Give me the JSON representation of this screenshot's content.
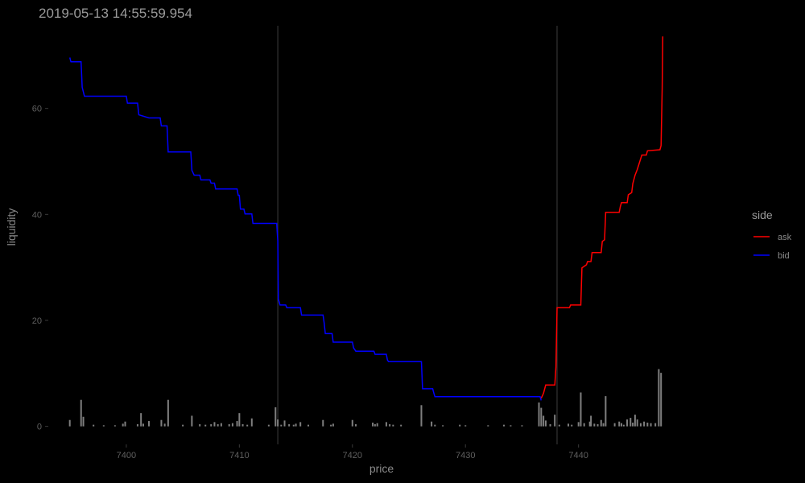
{
  "chart_data": {
    "type": "line",
    "title": "2019-05-13 14:55:59.954",
    "xlabel": "price",
    "ylabel": "liquidity",
    "xlim": [
      7393.1,
      7452.2
    ],
    "ylim": [
      -3.4,
      75.6
    ],
    "x_ticks": [
      7400,
      7410,
      7420,
      7430,
      7440
    ],
    "y_ticks": [
      0,
      20,
      40,
      60
    ],
    "grid": false,
    "legend": {
      "title": "side",
      "position": "right",
      "entries": [
        {
          "label": "ask",
          "color": "#ff0000"
        },
        {
          "label": "bid",
          "color": "#0000ff"
        }
      ]
    },
    "vlines": [
      {
        "x": 7413.4,
        "color": "#333333"
      },
      {
        "x": 7438.1,
        "color": "#333333"
      }
    ],
    "series": [
      {
        "name": "bid",
        "color": "#0000ff",
        "points": [
          [
            7395.0,
            69.6
          ],
          [
            7395.1,
            68.8
          ],
          [
            7396.0,
            68.8
          ],
          [
            7396.1,
            64.0
          ],
          [
            7396.3,
            62.3
          ],
          [
            7400.0,
            62.3
          ],
          [
            7400.1,
            61.0
          ],
          [
            7401.0,
            61.0
          ],
          [
            7401.1,
            58.8
          ],
          [
            7402.0,
            58.2
          ],
          [
            7403.0,
            58.2
          ],
          [
            7403.1,
            56.7
          ],
          [
            7403.6,
            56.7
          ],
          [
            7403.7,
            51.8
          ],
          [
            7405.7,
            51.8
          ],
          [
            7405.8,
            48.3
          ],
          [
            7406.0,
            47.4
          ],
          [
            7406.5,
            47.4
          ],
          [
            7406.6,
            46.5
          ],
          [
            7407.4,
            46.5
          ],
          [
            7407.5,
            45.9
          ],
          [
            7407.8,
            45.9
          ],
          [
            7407.9,
            44.8
          ],
          [
            7409.8,
            44.8
          ],
          [
            7409.9,
            43.6
          ],
          [
            7410.0,
            43.6
          ],
          [
            7410.1,
            41.0
          ],
          [
            7410.4,
            41.0
          ],
          [
            7410.5,
            40.1
          ],
          [
            7411.1,
            40.1
          ],
          [
            7411.2,
            38.3
          ],
          [
            7413.3,
            38.3
          ],
          [
            7413.4,
            35.0
          ],
          [
            7413.45,
            24.0
          ],
          [
            7413.6,
            22.9
          ],
          [
            7414.1,
            22.9
          ],
          [
            7414.2,
            22.4
          ],
          [
            7415.4,
            22.4
          ],
          [
            7415.5,
            21.0
          ],
          [
            7417.4,
            21.0
          ],
          [
            7417.5,
            19.5
          ],
          [
            7417.6,
            17.5
          ],
          [
            7418.2,
            17.5
          ],
          [
            7418.3,
            15.9
          ],
          [
            7420.0,
            15.9
          ],
          [
            7420.1,
            14.8
          ],
          [
            7420.3,
            14.2
          ],
          [
            7421.9,
            14.2
          ],
          [
            7422.0,
            13.6
          ],
          [
            7423.0,
            13.6
          ],
          [
            7423.1,
            12.5
          ],
          [
            7423.2,
            12.2
          ],
          [
            7426.1,
            12.2
          ],
          [
            7426.2,
            7.1
          ],
          [
            7427.1,
            7.1
          ],
          [
            7427.2,
            6.3
          ],
          [
            7427.3,
            5.6
          ],
          [
            7436.6,
            5.6
          ],
          [
            7436.7,
            4.9
          ]
        ]
      },
      {
        "name": "ask",
        "color": "#ff0000",
        "points": [
          [
            7436.7,
            5.3
          ],
          [
            7436.9,
            6.2
          ],
          [
            7437.0,
            7.0
          ],
          [
            7437.1,
            7.8
          ],
          [
            7437.9,
            7.8
          ],
          [
            7438.0,
            11.2
          ],
          [
            7438.1,
            22.4
          ],
          [
            7439.2,
            22.4
          ],
          [
            7439.3,
            22.9
          ],
          [
            7440.2,
            22.9
          ],
          [
            7440.3,
            29.9
          ],
          [
            7440.7,
            30.5
          ],
          [
            7440.8,
            31.1
          ],
          [
            7441.1,
            31.1
          ],
          [
            7441.2,
            32.8
          ],
          [
            7442.0,
            32.8
          ],
          [
            7442.1,
            34.9
          ],
          [
            7442.3,
            35.2
          ],
          [
            7442.4,
            40.4
          ],
          [
            7443.6,
            40.4
          ],
          [
            7443.7,
            41.5
          ],
          [
            7443.8,
            42.2
          ],
          [
            7444.3,
            42.2
          ],
          [
            7444.4,
            43.7
          ],
          [
            7444.7,
            44.1
          ],
          [
            7444.8,
            45.8
          ],
          [
            7445.0,
            47.4
          ],
          [
            7445.2,
            48.5
          ],
          [
            7445.6,
            51.2
          ],
          [
            7446.0,
            51.2
          ],
          [
            7446.1,
            52.0
          ],
          [
            7447.2,
            52.2
          ],
          [
            7447.3,
            53.0
          ],
          [
            7447.4,
            63.8
          ],
          [
            7447.45,
            73.6
          ]
        ]
      }
    ],
    "volume_bars": {
      "color": "#7f7f7f",
      "bars": [
        [
          7395.0,
          1.2
        ],
        [
          7396.0,
          5.0
        ],
        [
          7396.2,
          1.8
        ],
        [
          7397.1,
          0.3
        ],
        [
          7398.0,
          0.2
        ],
        [
          7399.0,
          0.2
        ],
        [
          7399.7,
          0.5
        ],
        [
          7399.9,
          0.9
        ],
        [
          7401.0,
          0.4
        ],
        [
          7401.3,
          2.5
        ],
        [
          7401.5,
          0.5
        ],
        [
          7402.0,
          1.0
        ],
        [
          7403.1,
          1.2
        ],
        [
          7403.4,
          0.5
        ],
        [
          7403.7,
          5.0
        ],
        [
          7405.0,
          0.3
        ],
        [
          7405.8,
          2.0
        ],
        [
          7406.5,
          0.4
        ],
        [
          7407.0,
          0.3
        ],
        [
          7407.5,
          0.4
        ],
        [
          7407.8,
          0.8
        ],
        [
          7408.1,
          0.4
        ],
        [
          7408.4,
          0.6
        ],
        [
          7409.1,
          0.4
        ],
        [
          7409.4,
          0.6
        ],
        [
          7409.8,
          1.0
        ],
        [
          7410.0,
          2.5
        ],
        [
          7410.3,
          0.4
        ],
        [
          7410.7,
          0.3
        ],
        [
          7411.1,
          1.5
        ],
        [
          7412.6,
          0.3
        ],
        [
          7413.2,
          3.6
        ],
        [
          7413.4,
          1.3
        ],
        [
          7413.7,
          0.3
        ],
        [
          7414.0,
          1.1
        ],
        [
          7414.4,
          0.4
        ],
        [
          7414.8,
          0.3
        ],
        [
          7415.0,
          0.5
        ],
        [
          7415.4,
          0.8
        ],
        [
          7416.1,
          0.3
        ],
        [
          7417.4,
          1.2
        ],
        [
          7418.1,
          0.3
        ],
        [
          7418.3,
          0.5
        ],
        [
          7420.0,
          1.2
        ],
        [
          7420.3,
          0.4
        ],
        [
          7421.8,
          0.7
        ],
        [
          7422.0,
          0.4
        ],
        [
          7422.2,
          0.6
        ],
        [
          7423.0,
          0.8
        ],
        [
          7423.3,
          0.4
        ],
        [
          7423.6,
          0.3
        ],
        [
          7424.3,
          0.3
        ],
        [
          7426.1,
          4.0
        ],
        [
          7427.0,
          0.9
        ],
        [
          7427.3,
          0.3
        ],
        [
          7428.0,
          0.2
        ],
        [
          7429.5,
          0.3
        ],
        [
          7430.0,
          0.2
        ],
        [
          7432.0,
          0.2
        ],
        [
          7433.4,
          0.3
        ],
        [
          7434.0,
          0.2
        ],
        [
          7435.0,
          0.2
        ],
        [
          7436.5,
          4.5
        ],
        [
          7436.7,
          3.5
        ],
        [
          7436.9,
          2.0
        ],
        [
          7437.1,
          1.1
        ],
        [
          7437.5,
          0.4
        ],
        [
          7437.9,
          2.2
        ],
        [
          7438.3,
          0.3
        ],
        [
          7439.1,
          0.5
        ],
        [
          7439.4,
          0.3
        ],
        [
          7440.0,
          0.8
        ],
        [
          7440.2,
          6.4
        ],
        [
          7440.5,
          0.6
        ],
        [
          7441.0,
          0.9
        ],
        [
          7441.1,
          2.0
        ],
        [
          7441.4,
          0.5
        ],
        [
          7441.7,
          0.4
        ],
        [
          7442.0,
          1.2
        ],
        [
          7442.2,
          0.6
        ],
        [
          7442.4,
          5.7
        ],
        [
          7443.2,
          0.6
        ],
        [
          7443.6,
          0.9
        ],
        [
          7443.8,
          0.6
        ],
        [
          7444.0,
          0.3
        ],
        [
          7444.3,
          1.3
        ],
        [
          7444.6,
          1.6
        ],
        [
          7444.8,
          0.7
        ],
        [
          7445.0,
          2.2
        ],
        [
          7445.2,
          1.3
        ],
        [
          7445.5,
          0.6
        ],
        [
          7445.8,
          0.9
        ],
        [
          7446.1,
          0.7
        ],
        [
          7446.4,
          0.6
        ],
        [
          7446.8,
          0.6
        ],
        [
          7447.1,
          10.8
        ],
        [
          7447.3,
          10.1
        ]
      ]
    }
  }
}
